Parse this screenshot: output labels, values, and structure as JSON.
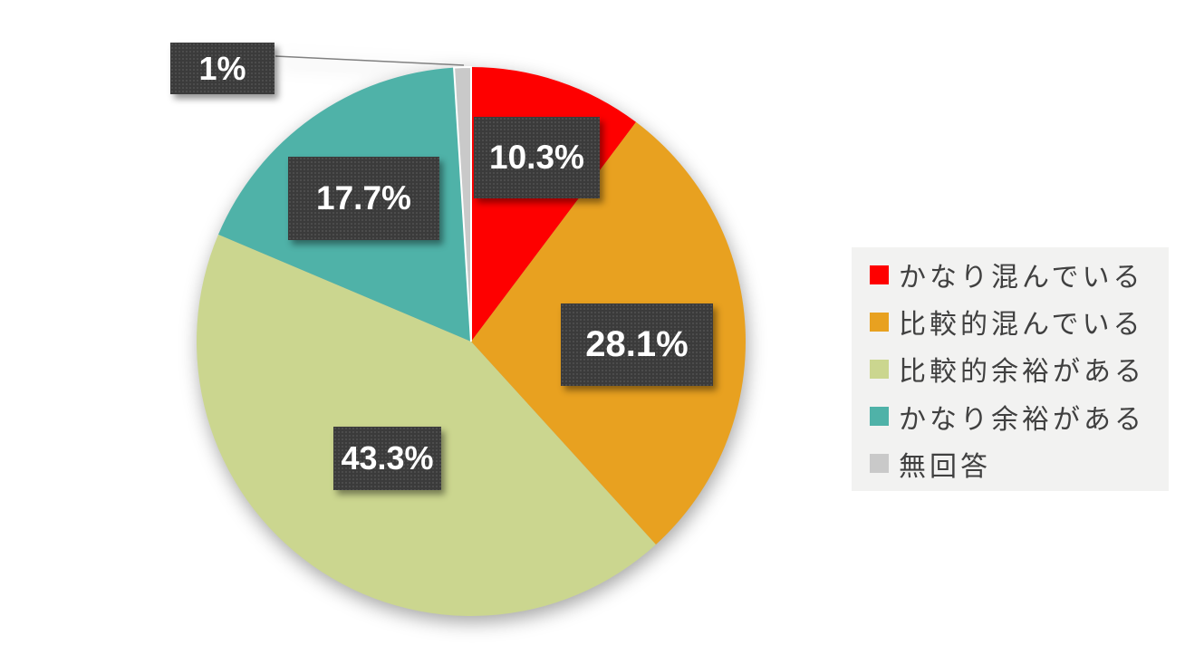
{
  "figure": {
    "background_color": "#FFFFFF",
    "label_box_color": "#3B3B3B",
    "label_text_color": "#FFFFFF",
    "leader_line_color": "#808080",
    "legend_background": "#F2F2F1",
    "legend_text_color": "#404040"
  },
  "chart_data": {
    "type": "pie",
    "title": "",
    "direction": "clockwise",
    "start_angle_deg": 0,
    "legend_position": "right",
    "categories": [
      "かなり混んでいる",
      "比較的混んでいる",
      "比較的余裕がある",
      "かなり余裕がある",
      "無回答"
    ],
    "values": [
      10.3,
      28.1,
      43.3,
      17.7,
      1
    ],
    "slices": [
      {
        "label": "かなり混んでいる",
        "value": 10.3,
        "display": "10.3%",
        "color": "#FE0000"
      },
      {
        "label": "比較的混んでいる",
        "value": 28.1,
        "display": "28.1%",
        "color": "#E8A120"
      },
      {
        "label": "比較的余裕がある",
        "value": 43.3,
        "display": "43.3%",
        "color": "#CBD68F"
      },
      {
        "label": "かなり余裕がある",
        "value": 17.7,
        "display": "17.7%",
        "color": "#4FB2A8"
      },
      {
        "label": "無回答",
        "value": 1,
        "display": "1%",
        "color": "#C9C9C9"
      }
    ]
  }
}
